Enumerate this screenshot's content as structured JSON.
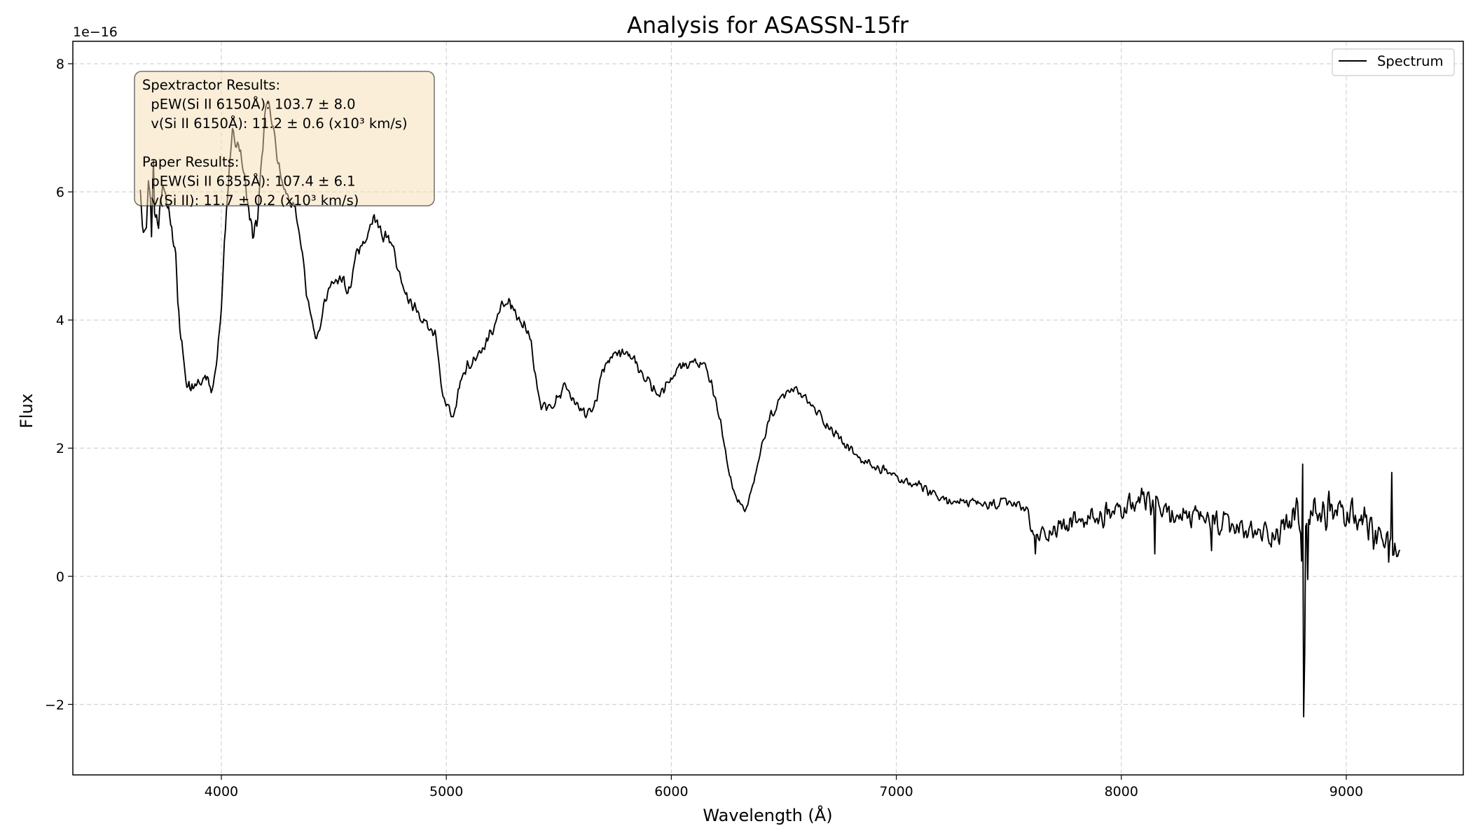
{
  "chart_data": {
    "type": "line",
    "title": "Analysis for ASASSN-15fr",
    "xlabel": "Wavelength (Å)",
    "ylabel": "Flux",
    "y_offset_label": "1e−16",
    "xlim": [
      3340,
      9520
    ],
    "ylim": [
      -3.1,
      8.35
    ],
    "xticks": [
      4000,
      5000,
      6000,
      7000,
      8000,
      9000
    ],
    "xtick_labels": [
      "4000",
      "5000",
      "6000",
      "7000",
      "8000",
      "9000"
    ],
    "yticks": [
      -2,
      0,
      2,
      4,
      6,
      8
    ],
    "ytick_labels": [
      "−2",
      "0",
      "2",
      "4",
      "6",
      "8"
    ],
    "grid": true,
    "legend": {
      "position": "top-right",
      "entries": [
        "Spectrum"
      ]
    },
    "series": [
      {
        "name": "Spectrum",
        "color": "#000000",
        "x_start": 3640,
        "x_end": 9240,
        "anchors_x": [
          3640,
          3660,
          3680,
          3700,
          3720,
          3740,
          3760,
          3780,
          3800,
          3815,
          3850,
          3900,
          3940,
          3960,
          3980,
          4000,
          4020,
          4050,
          4080,
          4100,
          4120,
          4140,
          4160,
          4200,
          4220,
          4250,
          4280,
          4300,
          4330,
          4360,
          4380,
          4420,
          4440,
          4460,
          4500,
          4540,
          4560,
          4580,
          4600,
          4640,
          4680,
          4720,
          4760,
          4800,
          4830,
          4880,
          4920,
          4950,
          4980,
          5020,
          5040,
          5060,
          5100,
          5150,
          5200,
          5240,
          5280,
          5320,
          5360,
          5380,
          5420,
          5450,
          5500,
          5520,
          5560,
          5600,
          5620,
          5660,
          5700,
          5740,
          5800,
          5850,
          5900,
          5950,
          6000,
          6050,
          6100,
          6150,
          6180,
          6220,
          6250,
          6280,
          6320,
          6340,
          6370,
          6400,
          6440,
          6480,
          6520,
          6560,
          6600,
          6650,
          6700,
          6750,
          6800,
          6850,
          6900,
          6950,
          7000,
          7050,
          7100,
          7150,
          7200,
          7300,
          7400,
          7500,
          7580,
          7600,
          7620,
          7700,
          7800,
          7900,
          8000,
          8100,
          8200,
          8300,
          8400,
          8500,
          8600,
          8700,
          8780,
          8800,
          8812,
          8820,
          8840,
          8900,
          9000,
          9100,
          9150,
          9180,
          9200,
          9240
        ],
        "anchors_y": [
          5.9,
          5.5,
          6.0,
          5.8,
          5.6,
          6.0,
          5.7,
          5.5,
          4.8,
          3.9,
          2.9,
          3.0,
          3.1,
          2.9,
          3.4,
          4.2,
          5.6,
          7.0,
          6.6,
          6.4,
          5.8,
          5.3,
          5.6,
          7.5,
          7.2,
          6.5,
          6.0,
          5.9,
          5.7,
          5.0,
          4.4,
          3.7,
          3.9,
          4.3,
          4.6,
          4.7,
          4.3,
          4.6,
          5.0,
          5.3,
          5.6,
          5.3,
          5.2,
          4.6,
          4.3,
          4.1,
          3.9,
          3.8,
          2.9,
          2.55,
          2.6,
          3.0,
          3.3,
          3.5,
          3.8,
          4.2,
          4.3,
          4.0,
          3.9,
          3.5,
          2.7,
          2.6,
          2.8,
          3.0,
          2.8,
          2.6,
          2.5,
          2.7,
          3.3,
          3.4,
          3.5,
          3.3,
          3.0,
          2.8,
          3.1,
          3.3,
          3.35,
          3.3,
          3.0,
          2.4,
          1.7,
          1.3,
          1.05,
          1.1,
          1.5,
          2.0,
          2.5,
          2.7,
          2.9,
          2.9,
          2.75,
          2.55,
          2.35,
          2.15,
          1.95,
          1.8,
          1.7,
          1.65,
          1.55,
          1.45,
          1.4,
          1.3,
          1.2,
          1.15,
          1.1,
          1.15,
          1.05,
          0.7,
          0.6,
          0.75,
          0.85,
          0.9,
          1.05,
          1.15,
          1.0,
          0.9,
          0.85,
          0.75,
          0.65,
          0.7,
          1.0,
          0.6,
          -2.58,
          1.0,
          0.9,
          1.0,
          1.0,
          0.7,
          0.5,
          0.6,
          0.5,
          0.4
        ],
        "noise_amplitude": [
          0.32,
          0.32,
          0.3,
          0.28,
          0.25,
          0.22,
          0.22,
          0.25,
          0.2,
          0.17,
          0.14,
          0.12,
          0.13,
          0.13,
          0.12,
          0.14,
          0.18,
          0.2,
          0.17,
          0.16,
          0.17,
          0.2,
          0.18,
          0.15,
          0.14,
          0.12,
          0.1,
          0.1,
          0.1,
          0.1,
          0.1,
          0.1,
          0.1,
          0.1,
          0.1,
          0.12,
          0.13,
          0.14,
          0.12,
          0.11,
          0.1,
          0.11,
          0.12,
          0.14,
          0.12,
          0.1,
          0.1,
          0.1,
          0.12,
          0.11,
          0.12,
          0.12,
          0.12,
          0.1,
          0.1,
          0.1,
          0.11,
          0.12,
          0.13,
          0.15,
          0.14,
          0.13,
          0.12,
          0.12,
          0.1,
          0.12,
          0.12,
          0.12,
          0.12,
          0.12,
          0.12,
          0.12,
          0.11,
          0.11,
          0.1,
          0.1,
          0.1,
          0.09,
          0.09,
          0.08,
          0.08,
          0.07,
          0.07,
          0.07,
          0.07,
          0.08,
          0.09,
          0.09,
          0.09,
          0.09,
          0.1,
          0.11,
          0.11,
          0.1,
          0.1,
          0.1,
          0.1,
          0.09,
          0.09,
          0.09,
          0.1,
          0.1,
          0.1,
          0.1,
          0.1,
          0.1,
          0.12,
          0.15,
          0.16,
          0.2,
          0.22,
          0.24,
          0.26,
          0.26,
          0.26,
          0.26,
          0.24,
          0.24,
          0.25,
          0.28,
          0.3,
          0.3,
          0.0,
          0.35,
          0.38,
          0.4,
          0.38,
          0.35,
          0.35,
          0.3,
          0.3,
          0.25
        ],
        "spikes": [
          {
            "x": 8806,
            "y": 1.75
          },
          {
            "x": 8830,
            "y": -0.05
          },
          {
            "x": 8150,
            "y": 0.35
          },
          {
            "x": 8400,
            "y": 0.4
          },
          {
            "x": 7620,
            "y": 0.35
          },
          {
            "x": 9200,
            "y": 1.62
          },
          {
            "x": 9190,
            "y": 0.22
          },
          {
            "x": 3700,
            "y": 6.5
          },
          {
            "x": 3690,
            "y": 5.3
          }
        ],
        "seed": 20151
      }
    ],
    "annotation": {
      "lines": [
        "Spextractor Results:",
        "  pEW(Si II 6150Å): 103.7 ± 8.0",
        "  v(Si II 6150Å): 11.2 ± 0.6 (x10³ km/s)",
        "",
        "Paper Results:",
        "  pEW(Si II 6355Å): 107.4 ± 6.1",
        "  v(Si II): 11.7 ± 0.2 (x10³ km/s)"
      ],
      "background": "#f5deb3",
      "opacity": 0.5
    }
  }
}
